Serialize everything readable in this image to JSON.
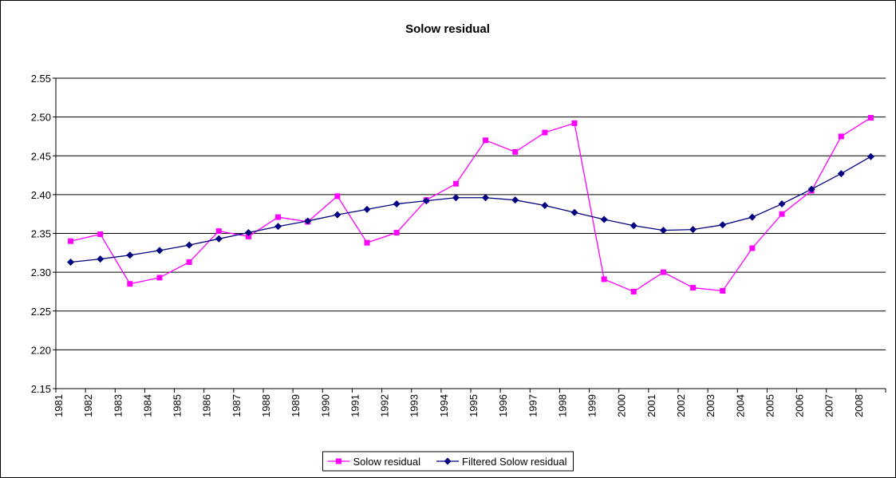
{
  "chart_data": {
    "type": "line",
    "title": "Solow residual",
    "categories": [
      "1981",
      "1982",
      "1983",
      "1984",
      "1985",
      "1986",
      "1987",
      "1988",
      "1989",
      "1990",
      "1991",
      "1992",
      "1993",
      "1994",
      "1995",
      "1996",
      "1997",
      "1998",
      "1999",
      "2000",
      "2001",
      "2002",
      "2003",
      "2004",
      "2005",
      "2006",
      "2007",
      "2008"
    ],
    "series": [
      {
        "name": "Solow residual",
        "color": "#ff00ff",
        "marker": "square",
        "values": [
          2.34,
          2.349,
          2.285,
          2.293,
          2.313,
          2.353,
          2.346,
          2.371,
          2.365,
          2.398,
          2.338,
          2.351,
          2.393,
          2.414,
          2.47,
          2.455,
          2.48,
          2.492,
          2.291,
          2.275,
          2.3,
          2.28,
          2.276,
          2.331,
          2.375,
          2.405,
          2.475,
          2.499
        ]
      },
      {
        "name": "Filtered Solow residual",
        "color": "#000080",
        "marker": "diamond",
        "values": [
          2.313,
          2.317,
          2.322,
          2.328,
          2.335,
          2.343,
          2.351,
          2.359,
          2.366,
          2.374,
          2.381,
          2.388,
          2.392,
          2.396,
          2.396,
          2.393,
          2.386,
          2.377,
          2.368,
          2.36,
          2.354,
          2.355,
          2.361,
          2.371,
          2.388,
          2.407,
          2.427,
          2.449
        ]
      }
    ],
    "ylim": [
      2.15,
      2.55
    ],
    "yticks": [
      2.15,
      {
        "value": 2.2,
        "label": "2.20"
      },
      2.25,
      {
        "value": 2.3,
        "label": "2.30"
      },
      2.35,
      {
        "value": 2.4,
        "label": "2.40"
      },
      2.45,
      {
        "value": 2.5,
        "label": "2.50"
      },
      2.55
    ],
    "grid": true,
    "legend": "bottom"
  }
}
